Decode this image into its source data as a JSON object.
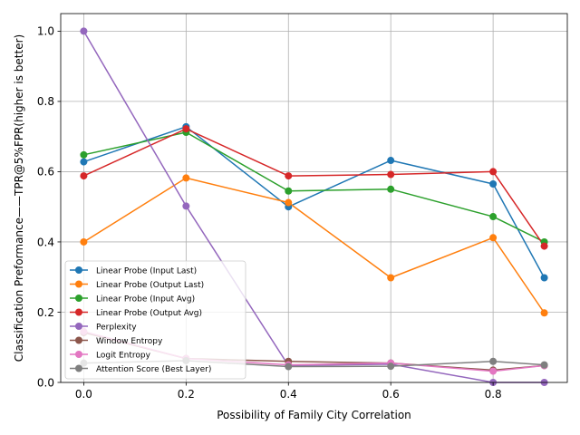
{
  "chart_data": {
    "type": "line",
    "title": "",
    "xlabel": "Possibility of Family City Correlation",
    "ylabel": "Classification Preformance——TPR@5%FPR(higher is better)",
    "x": [
      0.0,
      0.2,
      0.4,
      0.6,
      0.8,
      0.9
    ],
    "xlim": [
      -0.045,
      0.945
    ],
    "ylim": [
      0.0,
      1.05
    ],
    "xticks": [
      0.0,
      0.2,
      0.4,
      0.6,
      0.8
    ],
    "xtick_labels": [
      "0.0",
      "0.2",
      "0.4",
      "0.6",
      "0.8"
    ],
    "yticks": [
      0.0,
      0.2,
      0.4,
      0.6,
      0.8,
      1.0
    ],
    "ytick_labels": [
      "0.0",
      "0.2",
      "0.4",
      "0.6",
      "0.8",
      "1.0"
    ],
    "grid": true,
    "legend_position": "lower-left",
    "series": [
      {
        "name": "Linear Probe (Input Last)",
        "color": "#1f77b4",
        "values": [
          0.628,
          0.728,
          0.5,
          0.632,
          0.565,
          0.298
        ]
      },
      {
        "name": "Linear Probe (Output Last)",
        "color": "#ff7f0e",
        "values": [
          0.4,
          0.582,
          0.512,
          0.298,
          0.412,
          0.198
        ]
      },
      {
        "name": "Linear Probe (Input Avg)",
        "color": "#2ca02c",
        "values": [
          0.648,
          0.712,
          0.545,
          0.55,
          0.472,
          0.4
        ]
      },
      {
        "name": "Linear Probe (Output Avg)",
        "color": "#d62728",
        "values": [
          0.588,
          0.722,
          0.588,
          0.592,
          0.6,
          0.388
        ]
      },
      {
        "name": "Perplexity",
        "color": "#9467bd",
        "values": [
          1.0,
          0.502,
          0.048,
          0.052,
          0.0,
          0.0
        ]
      },
      {
        "name": "Window Entropy",
        "color": "#8c564b",
        "values": [
          0.142,
          0.068,
          0.06,
          0.055,
          0.035,
          0.048
        ]
      },
      {
        "name": "Logit Entropy",
        "color": "#e377c2",
        "values": [
          0.145,
          0.068,
          0.05,
          0.055,
          0.032,
          0.048
        ]
      },
      {
        "name": "Attention Score (Best Layer)",
        "color": "#7f7f7f",
        "values": [
          0.055,
          0.062,
          0.045,
          0.046,
          0.06,
          0.05
        ]
      }
    ]
  }
}
